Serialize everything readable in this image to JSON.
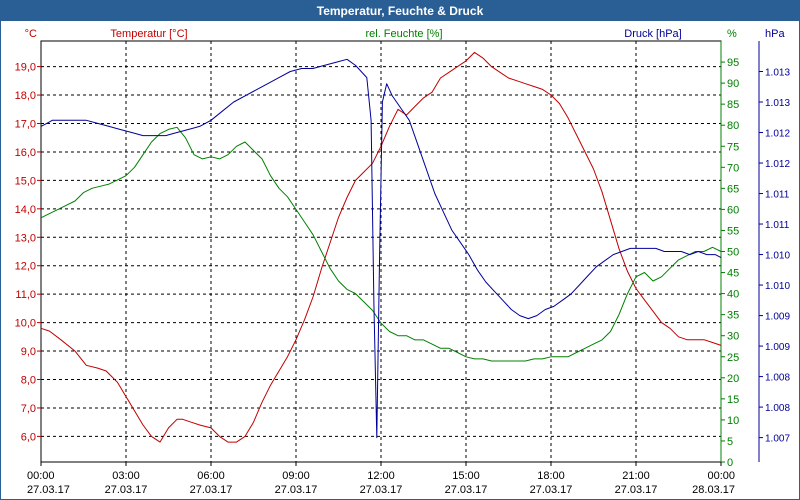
{
  "title": "Temperatur, Feuchte & Druck",
  "colors": {
    "temperature": "#c00000",
    "humidity": "#008000",
    "pressure": "#000099",
    "title_bar": "#2a5f96",
    "grid": "#000000"
  },
  "chart_data": {
    "type": "line",
    "title": "Temperatur, Feuchte & Druck",
    "grid": true,
    "legend_placement": "top",
    "x_ticks": [
      {
        "time": "00:00",
        "date": "27.03.17"
      },
      {
        "time": "03:00",
        "date": "27.03.17"
      },
      {
        "time": "06:00",
        "date": "27.03.17"
      },
      {
        "time": "09:00",
        "date": "27.03.17"
      },
      {
        "time": "12:00",
        "date": "27.03.17"
      },
      {
        "time": "15:00",
        "date": "27.03.17"
      },
      {
        "time": "18:00",
        "date": "27.03.17"
      },
      {
        "time": "21:00",
        "date": "27.03.17"
      },
      {
        "time": "00:00",
        "date": "28.03.17"
      }
    ],
    "x_range_hours": [
      0,
      24
    ],
    "axes": {
      "temperature": {
        "label": "Temperatur [°C]",
        "unit": "°C",
        "ylim": [
          5.1,
          19.9
        ],
        "ticks": [
          "19,0",
          "18,0",
          "17,0",
          "16,0",
          "15,0",
          "14,0",
          "13,0",
          "12,0",
          "11,0",
          "10,0",
          "9,0",
          "8,0",
          "7,0",
          "6,0"
        ],
        "tick_values": [
          19,
          18,
          17,
          16,
          15,
          14,
          13,
          12,
          11,
          10,
          9,
          8,
          7,
          6
        ]
      },
      "humidity": {
        "label": "rel. Feuchte [%]",
        "unit": "%",
        "ylim": [
          0,
          100
        ],
        "ticks": [
          "95",
          "90",
          "85",
          "80",
          "75",
          "70",
          "65",
          "60",
          "55",
          "50",
          "45",
          "40",
          "35",
          "30",
          "25",
          "20",
          "15",
          "10",
          "5",
          "0"
        ],
        "tick_values": [
          95,
          90,
          85,
          80,
          75,
          70,
          65,
          60,
          55,
          50,
          45,
          40,
          35,
          30,
          25,
          20,
          15,
          10,
          5,
          0
        ]
      },
      "pressure": {
        "label": "Druck [hPa]",
        "unit": "hPa",
        "ylim": [
          1006.6,
          1013.5
        ],
        "ticks": [
          "1.013",
          "1.013",
          "1.012",
          "1.012",
          "1.011",
          "1.011",
          "1.010",
          "1.010",
          "1.009",
          "1.009",
          "1.008",
          "1.008",
          "1.007"
        ],
        "tick_values": [
          1013.0,
          1012.5,
          1012.0,
          1011.5,
          1011.0,
          1010.5,
          1010.0,
          1009.5,
          1009.0,
          1008.5,
          1008.0,
          1007.5,
          1007.0
        ]
      }
    },
    "series": [
      {
        "name": "Temperatur [°C]",
        "axis": "temperature",
        "color": "#c00000",
        "x": [
          0,
          0.3,
          0.7,
          1.2,
          1.6,
          2.0,
          2.3,
          2.7,
          3.0,
          3.3,
          3.6,
          3.9,
          4.2,
          4.5,
          4.8,
          5.0,
          5.3,
          5.6,
          6.0,
          6.3,
          6.6,
          6.9,
          7.2,
          7.5,
          7.8,
          8.1,
          8.4,
          8.7,
          9.0,
          9.3,
          9.6,
          9.9,
          10.2,
          10.5,
          10.8,
          11.1,
          11.4,
          11.7,
          12.0,
          12.3,
          12.6,
          12.9,
          13.2,
          13.5,
          13.8,
          14.1,
          14.4,
          14.7,
          15.0,
          15.3,
          15.6,
          15.9,
          16.2,
          16.5,
          16.8,
          17.1,
          17.4,
          17.7,
          18.0,
          18.3,
          18.6,
          18.9,
          19.2,
          19.5,
          19.8,
          20.1,
          20.4,
          20.7,
          21.0,
          21.3,
          21.6,
          21.9,
          22.2,
          22.5,
          22.8,
          23.1,
          23.4,
          23.7,
          24.0
        ],
        "values": [
          9.8,
          9.7,
          9.4,
          9.0,
          8.5,
          8.4,
          8.3,
          7.9,
          7.4,
          6.9,
          6.4,
          6.0,
          5.8,
          6.3,
          6.6,
          6.6,
          6.5,
          6.4,
          6.3,
          6.0,
          5.8,
          5.8,
          6.0,
          6.5,
          7.2,
          7.8,
          8.3,
          8.8,
          9.4,
          10.1,
          10.9,
          11.9,
          12.8,
          13.7,
          14.4,
          15.0,
          15.3,
          15.6,
          16.2,
          16.9,
          17.5,
          17.3,
          17.6,
          17.9,
          18.1,
          18.6,
          18.8,
          19.0,
          19.2,
          19.5,
          19.3,
          19.0,
          18.8,
          18.6,
          18.5,
          18.4,
          18.3,
          18.2,
          18.0,
          17.7,
          17.2,
          16.6,
          16.0,
          15.4,
          14.6,
          13.6,
          12.6,
          11.8,
          11.2,
          10.8,
          10.4,
          10.0,
          9.8,
          9.5,
          9.4,
          9.4,
          9.4,
          9.3,
          9.2
        ]
      },
      {
        "name": "rel. Feuchte [%]",
        "axis": "humidity",
        "color": "#008000",
        "x": [
          0,
          0.3,
          0.6,
          0.9,
          1.2,
          1.5,
          1.8,
          2.1,
          2.4,
          2.7,
          3.0,
          3.3,
          3.6,
          3.9,
          4.2,
          4.5,
          4.8,
          5.1,
          5.4,
          5.7,
          6.0,
          6.3,
          6.6,
          6.9,
          7.2,
          7.5,
          7.8,
          8.1,
          8.4,
          8.7,
          9.0,
          9.3,
          9.6,
          9.9,
          10.2,
          10.5,
          10.8,
          11.1,
          11.4,
          11.7,
          12.0,
          12.3,
          12.6,
          12.9,
          13.2,
          13.5,
          13.8,
          14.1,
          14.4,
          14.7,
          15.0,
          15.3,
          15.6,
          15.9,
          16.2,
          16.5,
          16.8,
          17.1,
          17.4,
          17.7,
          18.0,
          18.3,
          18.6,
          18.9,
          19.2,
          19.5,
          19.8,
          20.1,
          20.4,
          20.7,
          21.0,
          21.3,
          21.6,
          21.9,
          22.2,
          22.5,
          22.8,
          23.1,
          23.4,
          23.7,
          24.0
        ],
        "values": [
          58,
          59,
          60,
          61,
          62,
          64,
          65,
          65.5,
          66,
          67,
          68,
          70,
          73,
          76,
          78,
          79,
          79.5,
          77,
          73,
          72,
          72.5,
          72,
          73,
          75,
          76,
          74,
          72,
          68,
          65,
          63,
          60,
          57,
          54,
          50,
          46,
          43,
          41,
          40,
          38,
          36,
          33,
          31,
          30,
          30,
          29,
          29,
          28,
          27,
          27,
          26,
          25,
          24.5,
          24.5,
          24,
          24,
          24,
          24,
          24,
          24.5,
          24.5,
          25,
          25,
          25,
          26,
          27,
          28,
          29,
          31,
          35,
          40,
          44,
          45,
          43,
          44,
          46,
          48,
          49,
          50,
          50,
          51,
          50
        ]
      },
      {
        "name": "Druck [hPa]",
        "axis": "pressure",
        "color": "#000099",
        "x": [
          0,
          0.2,
          0.4,
          0.8,
          1.2,
          1.6,
          2.0,
          2.4,
          2.8,
          3.2,
          3.6,
          4.0,
          4.4,
          4.8,
          5.2,
          5.6,
          6.0,
          6.4,
          6.8,
          7.2,
          7.6,
          8.0,
          8.4,
          8.8,
          9.2,
          9.6,
          10.0,
          10.4,
          10.8,
          11.1,
          11.3,
          11.5,
          11.65,
          11.75,
          11.85,
          11.95,
          12.05,
          12.2,
          12.4,
          12.7,
          13.0,
          13.3,
          13.6,
          13.9,
          14.2,
          14.5,
          14.8,
          15.1,
          15.4,
          15.7,
          16.0,
          16.3,
          16.6,
          16.9,
          17.2,
          17.5,
          17.8,
          18.1,
          18.4,
          18.7,
          19.0,
          19.3,
          19.6,
          19.9,
          20.2,
          20.5,
          20.8,
          21.1,
          21.4,
          21.7,
          22.0,
          22.3,
          22.6,
          22.9,
          23.2,
          23.5,
          23.8,
          24.0
        ],
        "values": [
          1012.1,
          1012.15,
          1012.2,
          1012.2,
          1012.2,
          1012.2,
          1012.15,
          1012.1,
          1012.05,
          1012.0,
          1011.95,
          1011.95,
          1011.95,
          1012.0,
          1012.05,
          1012.1,
          1012.2,
          1012.35,
          1012.5,
          1012.6,
          1012.7,
          1012.8,
          1012.9,
          1013.0,
          1013.05,
          1013.05,
          1013.1,
          1013.15,
          1013.2,
          1013.1,
          1013.0,
          1012.9,
          1012.2,
          1009.2,
          1007.0,
          1010.0,
          1012.5,
          1012.8,
          1012.6,
          1012.4,
          1012.2,
          1011.8,
          1011.4,
          1011.0,
          1010.7,
          1010.4,
          1010.2,
          1010.0,
          1009.75,
          1009.55,
          1009.4,
          1009.25,
          1009.1,
          1009.0,
          1008.95,
          1009.0,
          1009.1,
          1009.15,
          1009.25,
          1009.35,
          1009.5,
          1009.65,
          1009.8,
          1009.9,
          1010.0,
          1010.05,
          1010.1,
          1010.1,
          1010.1,
          1010.1,
          1010.05,
          1010.05,
          1010.05,
          1010.0,
          1010.05,
          1010.0,
          1010.0,
          1009.95
        ]
      }
    ]
  }
}
